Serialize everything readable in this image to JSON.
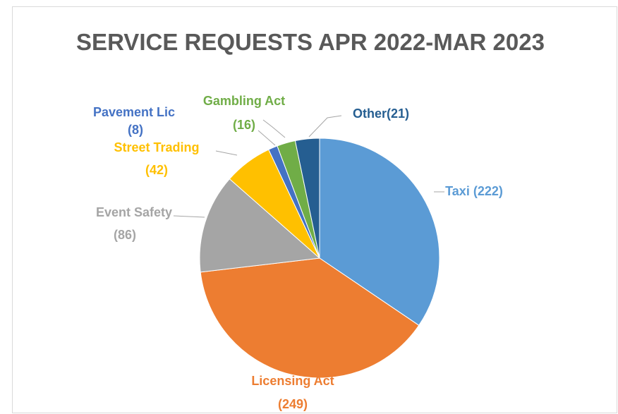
{
  "chart_data": {
    "type": "pie",
    "title": "SERVICE REQUESTS APR 2022-MAR 2023",
    "values": [
      222,
      249,
      86,
      42,
      8,
      16,
      21
    ],
    "value_labels": [
      [
        "Taxi (222)"
      ],
      [
        "Licensing Act",
        "(249)"
      ],
      [
        "Event Safety",
        "(86)"
      ],
      [
        "Street Trading",
        "(42)"
      ],
      [
        "Pavement Lic",
        "(8)"
      ],
      [
        "Gambling Act",
        "(16)"
      ],
      [
        "Other(21)"
      ]
    ],
    "colors": [
      "#5b9bd5",
      "#ed7d31",
      "#a5a5a5",
      "#ffc000",
      "#4472c4",
      "#70ad47",
      "#255e91"
    ]
  }
}
